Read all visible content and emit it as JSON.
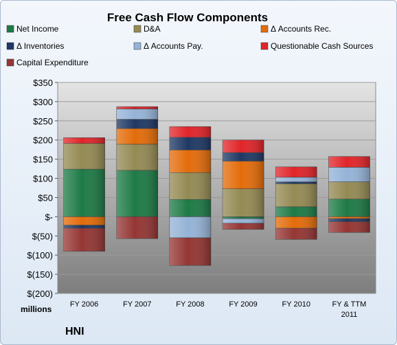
{
  "chart_data": {
    "type": "bar",
    "stacked": true,
    "title": "Free Cash Flow Components",
    "ylabel": "millions",
    "company": "HNI",
    "categories": [
      "FY 2006",
      "FY 2007",
      "FY 2008",
      "FY 2009",
      "FY 2010",
      "FY & TTM 2011"
    ],
    "y_ticks": [
      "$350",
      "$300",
      "$250",
      "$200",
      "$150",
      "$100",
      "$50",
      "$-",
      "$(50)",
      "$(100)",
      "$(150)",
      "$(200)"
    ],
    "ylim": [
      -200,
      350
    ],
    "legend_position": "top",
    "grid": true,
    "series": [
      {
        "name": "Net Income",
        "color": "#1e7a46",
        "values": [
          124,
          121,
          45,
          -5,
          26,
          46
        ]
      },
      {
        "name": "D&A",
        "color": "#948a54",
        "values": [
          67,
          68,
          70,
          73,
          60,
          45
        ]
      },
      {
        "name": "Δ Accounts Rec.",
        "color": "#e36c0a",
        "values": [
          -22,
          41,
          59,
          72,
          -30,
          -5
        ]
      },
      {
        "name": "Δ Inventories",
        "color": "#1f3864",
        "values": [
          -8,
          24,
          33,
          22,
          5,
          -8
        ]
      },
      {
        "name": "Δ Accounts Pay.",
        "color": "#95b3d7",
        "values": [
          0,
          27,
          -55,
          -12,
          12,
          38
        ]
      },
      {
        "name": "Questionable Cash Sources",
        "color": "#e0252a",
        "values": [
          15,
          6,
          28,
          33,
          27,
          28
        ]
      },
      {
        "name": "Capital Expenditure",
        "color": "#943634",
        "values": [
          -60,
          -57,
          -72,
          -16,
          -29,
          -28
        ]
      }
    ]
  }
}
